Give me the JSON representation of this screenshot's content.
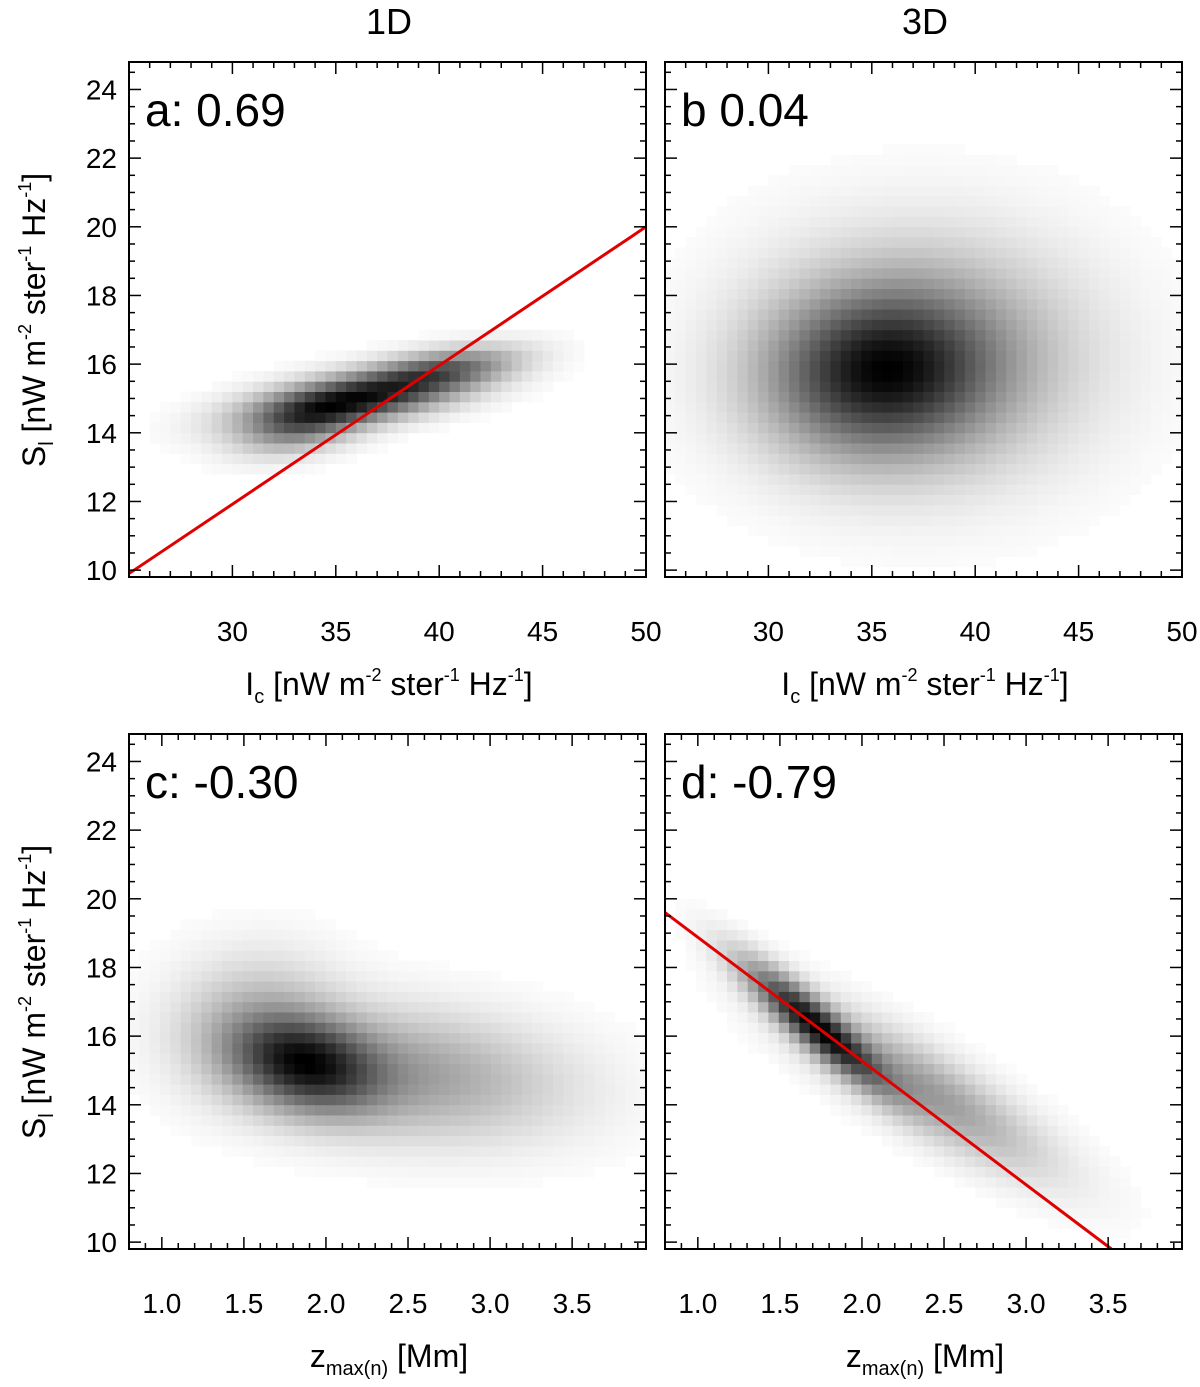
{
  "column_titles": [
    "1D",
    "3D"
  ],
  "labels": {
    "sl_main": "S",
    "sl_sub": "l",
    "sl_units": " [nW m",
    "exp_m2": "-2",
    "ster": " ster",
    "exp_m1": "-1",
    "hz": " Hz",
    "close_bracket": "]",
    "ic_main": "I",
    "ic_sub": "c",
    "z_main": "z",
    "z_sub": "max(n)",
    "z_units": " [Mm]"
  },
  "colors": {
    "fit_line": "#e00000",
    "density_dark": "#000000"
  },
  "chart_data": [
    {
      "id": "a",
      "type": "heatmap",
      "column": "1D",
      "label": "a: 0.69",
      "correlation": 0.69,
      "xlim": [
        25,
        50
      ],
      "ylim": [
        9.8,
        24.8
      ],
      "xticks": [
        30,
        35,
        40,
        45,
        50
      ],
      "yticks": [
        10,
        12,
        14,
        16,
        18,
        20,
        22,
        24
      ],
      "xlabel": "Ic [nW m-2 ster-1 Hz-1]",
      "ylabel": "Sl [nW m-2 ster-1 Hz-1]",
      "density": [
        {
          "cx": 36,
          "cy": 15.0,
          "sx": 3.0,
          "sy": 0.5,
          "rho": 0.55,
          "w": 1.0
        },
        {
          "cx": 40,
          "cy": 15.8,
          "sx": 2.2,
          "sy": 0.4,
          "rho": 0.5,
          "w": 0.55
        },
        {
          "cx": 33.5,
          "cy": 14.3,
          "sx": 1.8,
          "sy": 0.5,
          "rho": 0.4,
          "w": 0.5
        }
      ],
      "fit_line": {
        "x": [
          25,
          50
        ],
        "y": [
          9.9,
          20.0
        ]
      }
    },
    {
      "id": "b",
      "type": "heatmap",
      "column": "3D",
      "label": "b 0.04",
      "correlation": 0.04,
      "xlim": [
        25,
        50
      ],
      "ylim": [
        9.8,
        24.8
      ],
      "xticks": [
        30,
        35,
        40,
        45,
        50
      ],
      "yticks": [
        10,
        12,
        14,
        16,
        18,
        20,
        22,
        24
      ],
      "xlabel": "Ic [nW m-2 ster-1 Hz-1]",
      "ylabel": "",
      "density": [
        {
          "cx": 35.5,
          "cy": 15.8,
          "sx": 3.2,
          "sy": 1.4,
          "rho": 0.05,
          "w": 1.0
        },
        {
          "cx": 37.5,
          "cy": 16.2,
          "sx": 4.5,
          "sy": 2.0,
          "rho": 0.0,
          "w": 0.35
        }
      ],
      "fit_line": null
    },
    {
      "id": "c",
      "type": "heatmap",
      "column": "1D",
      "label": "c: -0.30",
      "correlation": -0.3,
      "xlim": [
        0.8,
        3.95
      ],
      "ylim": [
        9.8,
        24.8
      ],
      "xticks": [
        1.0,
        1.5,
        2.0,
        2.5,
        3.0,
        3.5
      ],
      "yticks": [
        10,
        12,
        14,
        16,
        18,
        20,
        22,
        24
      ],
      "xlabel": "zmax(n) [Mm]",
      "ylabel": "Sl [nW m-2 ster-1 Hz-1]",
      "density": [
        {
          "cx": 1.88,
          "cy": 15.2,
          "sx": 0.28,
          "sy": 0.85,
          "rho": -0.25,
          "w": 1.0
        },
        {
          "cx": 2.5,
          "cy": 14.9,
          "sx": 0.55,
          "sy": 1.1,
          "rho": -0.2,
          "w": 0.3
        },
        {
          "cx": 1.6,
          "cy": 16.3,
          "sx": 0.3,
          "sy": 1.2,
          "rho": 0.0,
          "w": 0.2
        }
      ],
      "fit_line": null
    },
    {
      "id": "d",
      "type": "heatmap",
      "column": "3D",
      "label": "d: -0.79",
      "correlation": -0.79,
      "xlim": [
        0.8,
        3.95
      ],
      "ylim": [
        9.8,
        24.8
      ],
      "xticks": [
        1.0,
        1.5,
        2.0,
        2.5,
        3.0,
        3.5
      ],
      "yticks": [
        10,
        12,
        14,
        16,
        18,
        20,
        22,
        24
      ],
      "xlabel": "zmax(n) [Mm]",
      "ylabel": "",
      "density": [
        {
          "cx": 1.72,
          "cy": 16.3,
          "sx": 0.25,
          "sy": 1.05,
          "rho": -0.9,
          "w": 1.0
        },
        {
          "cx": 2.35,
          "cy": 14.5,
          "sx": 0.45,
          "sy": 1.4,
          "rho": -0.85,
          "w": 0.3
        }
      ],
      "fit_line": {
        "x": [
          0.8,
          3.52
        ],
        "y": [
          19.6,
          9.8
        ]
      }
    }
  ]
}
